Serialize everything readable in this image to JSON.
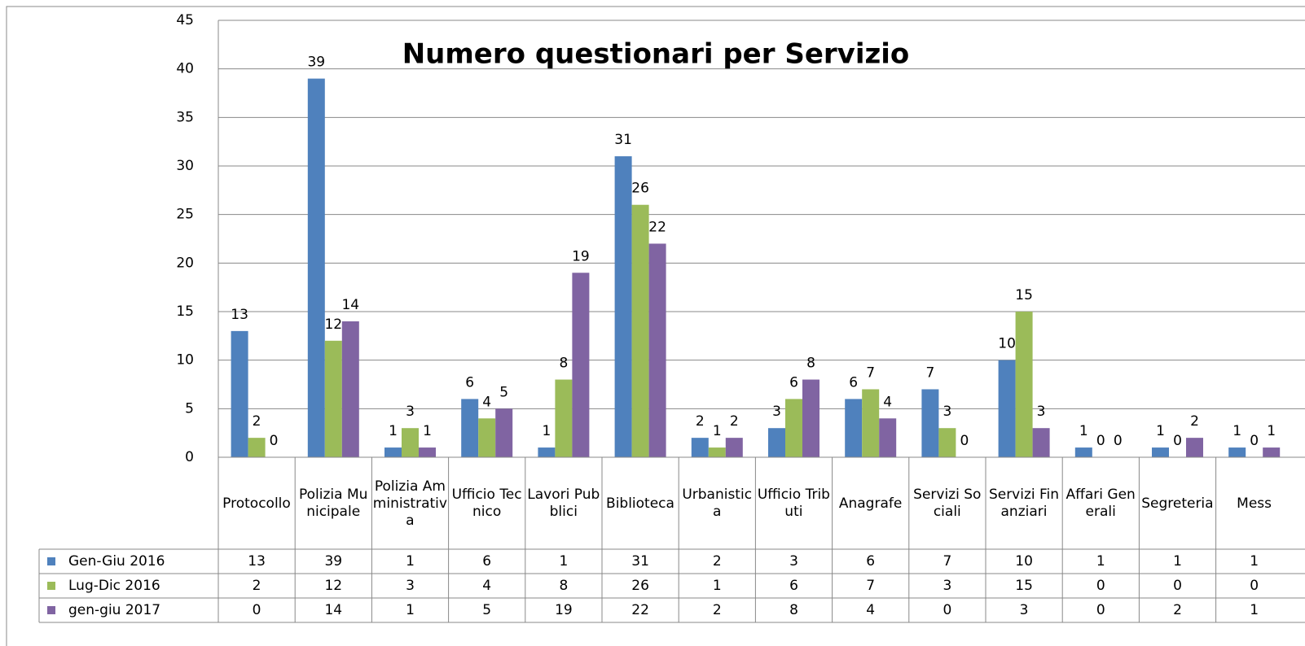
{
  "chart_data": {
    "type": "bar",
    "title": "Numero questionari per Servizio",
    "categories": [
      "Protocollo",
      "Polizia Municipale",
      "Polizia Amministrativa",
      "Ufficio Tecnico",
      "Lavori Pubblici",
      "Biblioteca",
      "Urbanistica",
      "Ufficio Tributi",
      "Anagrafe",
      "Servizi Sociali",
      "Servizi Finanziari",
      "Affari Generali",
      "Segreteria",
      "Mess"
    ],
    "series": [
      {
        "name": "Gen-Giu 2016",
        "color": "#4f81bd",
        "values": [
          13,
          39,
          1,
          6,
          1,
          31,
          2,
          3,
          6,
          7,
          10,
          1,
          1,
          1
        ]
      },
      {
        "name": "Lug-Dic 2016",
        "color": "#9bbb59",
        "values": [
          2,
          12,
          3,
          4,
          8,
          26,
          1,
          6,
          7,
          3,
          15,
          0,
          0,
          0
        ]
      },
      {
        "name": "gen-giu 2017",
        "color": "#8064a2",
        "values": [
          0,
          14,
          1,
          5,
          19,
          22,
          2,
          8,
          4,
          0,
          3,
          0,
          2,
          1
        ]
      }
    ],
    "ylim": [
      0,
      45
    ],
    "yticks": [
      0,
      5,
      10,
      15,
      20,
      25,
      30,
      35,
      40,
      45
    ],
    "grid": true,
    "data_table": true
  }
}
